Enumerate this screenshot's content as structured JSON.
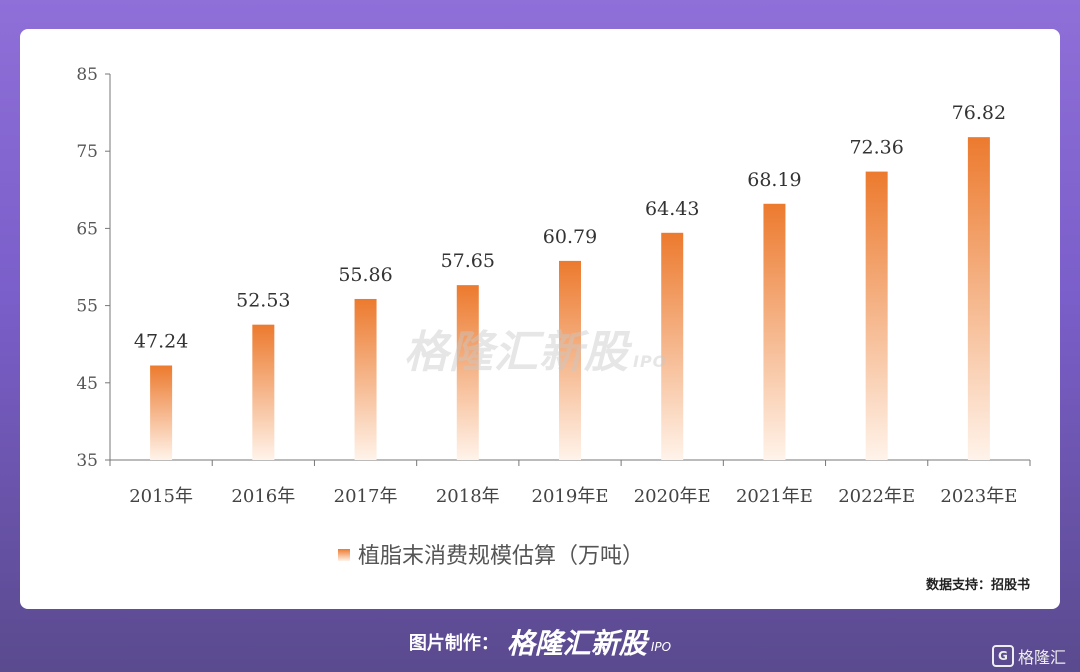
{
  "chart_data": {
    "type": "bar",
    "categories": [
      "2015年",
      "2016年",
      "2017年",
      "2018年",
      "2019年E",
      "2020年E",
      "2021年E",
      "2022年E",
      "2023年E"
    ],
    "values": [
      47.24,
      52.53,
      55.86,
      57.65,
      60.79,
      64.43,
      68.19,
      72.36,
      76.82
    ],
    "value_labels": [
      "47.24",
      "52.53",
      "55.86",
      "57.65",
      "60.79",
      "64.43",
      "68.19",
      "72.36",
      "76.82"
    ],
    "series_name": "植脂末消费规模估算（万吨）",
    "ylim": [
      35,
      85
    ],
    "yticks": [
      "35",
      "45",
      "55",
      "65",
      "75",
      "85"
    ],
    "grid": false,
    "legend_position": "bottom",
    "bar_color_top": "#ec7a2e",
    "bar_color_bottom": "#fff3ea"
  },
  "watermark": {
    "text": "格隆汇新股",
    "sub": "IPO"
  },
  "source": "数据支持：招股书",
  "footer": {
    "label": "图片制作：",
    "brand": "格隆汇新股",
    "brand_sub": "IPO"
  },
  "corner_logo": {
    "icon": "G",
    "text": "格隆汇"
  }
}
